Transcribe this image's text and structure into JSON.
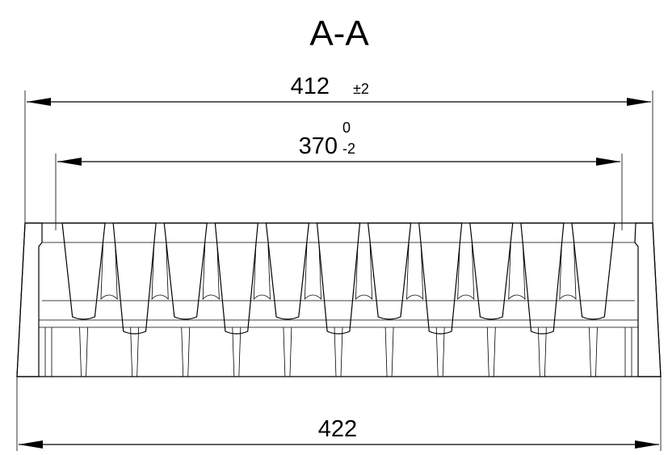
{
  "drawing": {
    "section_title": "A-A",
    "dim_top": {
      "value": "412",
      "tolerance": "±2"
    },
    "dim_inner": {
      "value": "370",
      "tol_upper": "0",
      "tol_lower": "-2"
    },
    "dim_bottom": {
      "value": "422"
    },
    "rib_count": 11
  }
}
